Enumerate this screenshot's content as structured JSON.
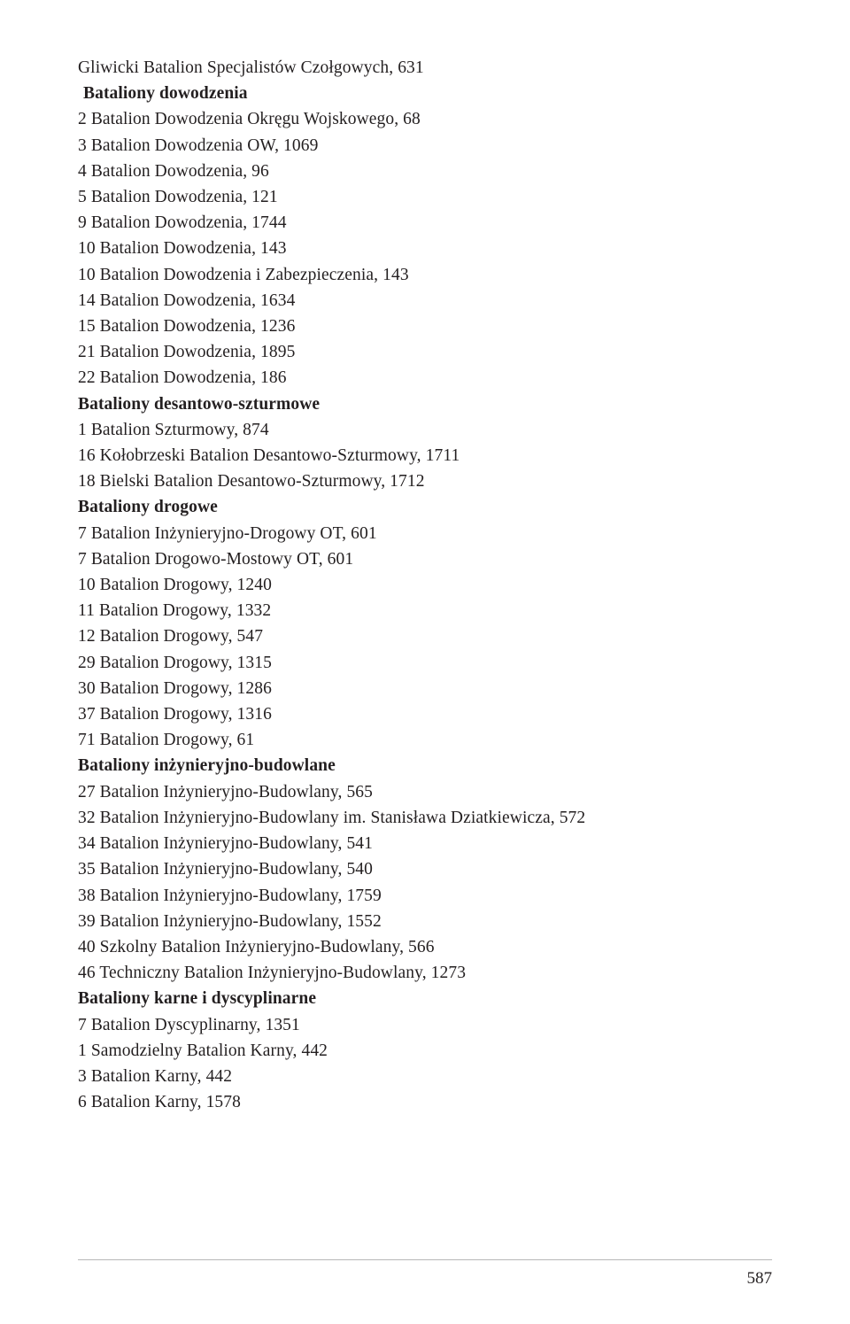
{
  "page_number": "587",
  "colors": {
    "text": "#231f20",
    "background": "#ffffff",
    "rule": "#b7b7b7"
  },
  "typography": {
    "body_fontsize": 19.5,
    "line_height": 29.2,
    "font_family": "Adobe Caslon Pro / Georgia serif"
  },
  "lines": [
    {
      "text": "Gliwicki Batalion Specjalistów Czołgowych, 631",
      "bold": false,
      "indent": false
    },
    {
      "text": "Bataliony dowodzenia",
      "bold": true,
      "indent": true
    },
    {
      "text": "2 Batalion Dowodzenia Okręgu Wojskowego, 68",
      "bold": false,
      "indent": false
    },
    {
      "text": "3 Batalion Dowodzenia OW, 1069",
      "bold": false,
      "indent": false
    },
    {
      "text": "4 Batalion Dowodzenia, 96",
      "bold": false,
      "indent": false
    },
    {
      "text": "5 Batalion Dowodzenia, 121",
      "bold": false,
      "indent": false
    },
    {
      "text": "9 Batalion Dowodzenia, 1744",
      "bold": false,
      "indent": false
    },
    {
      "text": "10 Batalion Dowodzenia, 143",
      "bold": false,
      "indent": false
    },
    {
      "text": "10 Batalion Dowodzenia i Zabezpieczenia, 143",
      "bold": false,
      "indent": false
    },
    {
      "text": "14 Batalion Dowodzenia, 1634",
      "bold": false,
      "indent": false
    },
    {
      "text": "15 Batalion Dowodzenia, 1236",
      "bold": false,
      "indent": false
    },
    {
      "text": "21 Batalion Dowodzenia, 1895",
      "bold": false,
      "indent": false
    },
    {
      "text": "22 Batalion Dowodzenia, 186",
      "bold": false,
      "indent": false
    },
    {
      "text": "Bataliony desantowo-szturmowe",
      "bold": true,
      "indent": false
    },
    {
      "text": "1 Batalion Szturmowy, 874",
      "bold": false,
      "indent": false
    },
    {
      "text": "16 Kołobrzeski Batalion Desantowo-Szturmowy, 1711",
      "bold": false,
      "indent": false
    },
    {
      "text": "18 Bielski Batalion Desantowo-Szturmowy, 1712",
      "bold": false,
      "indent": false
    },
    {
      "text": "Bataliony drogowe",
      "bold": true,
      "indent": false
    },
    {
      "text": "7 Batalion Inżynieryjno-Drogowy OT, 601",
      "bold": false,
      "indent": false
    },
    {
      "text": "7 Batalion Drogowo-Mostowy OT, 601",
      "bold": false,
      "indent": false
    },
    {
      "text": "10 Batalion Drogowy, 1240",
      "bold": false,
      "indent": false
    },
    {
      "text": "11 Batalion Drogowy, 1332",
      "bold": false,
      "indent": false
    },
    {
      "text": "12 Batalion Drogowy, 547",
      "bold": false,
      "indent": false
    },
    {
      "text": "29 Batalion Drogowy, 1315",
      "bold": false,
      "indent": false
    },
    {
      "text": "30 Batalion Drogowy, 1286",
      "bold": false,
      "indent": false
    },
    {
      "text": "37 Batalion Drogowy, 1316",
      "bold": false,
      "indent": false
    },
    {
      "text": "71 Batalion Drogowy, 61",
      "bold": false,
      "indent": false
    },
    {
      "text": "Bataliony inżynieryjno-budowlane",
      "bold": true,
      "indent": false
    },
    {
      "text": "27 Batalion Inżynieryjno-Budowlany, 565",
      "bold": false,
      "indent": false
    },
    {
      "text": "32 Batalion Inżynieryjno-Budowlany im. Stanisława Dziatkiewicza, 572",
      "bold": false,
      "indent": false
    },
    {
      "text": "34 Batalion Inżynieryjno-Budowlany, 541",
      "bold": false,
      "indent": false
    },
    {
      "text": "35 Batalion Inżynieryjno-Budowlany, 540",
      "bold": false,
      "indent": false
    },
    {
      "text": "38 Batalion Inżynieryjno-Budowlany, 1759",
      "bold": false,
      "indent": false
    },
    {
      "text": "39 Batalion Inżynieryjno-Budowlany, 1552",
      "bold": false,
      "indent": false
    },
    {
      "text": "40 Szkolny Batalion Inżynieryjno-Budowlany, 566",
      "bold": false,
      "indent": false
    },
    {
      "text": "46 Techniczny Batalion Inżynieryjno-Budowlany, 1273",
      "bold": false,
      "indent": false
    },
    {
      "text": "Bataliony karne i dyscyplinarne",
      "bold": true,
      "indent": false
    },
    {
      "text": "7 Batalion Dyscyplinarny, 1351",
      "bold": false,
      "indent": false
    },
    {
      "text": "1 Samodzielny Batalion Karny, 442",
      "bold": false,
      "indent": false
    },
    {
      "text": "3 Batalion Karny, 442",
      "bold": false,
      "indent": false
    },
    {
      "text": "6 Batalion Karny, 1578",
      "bold": false,
      "indent": false
    }
  ]
}
